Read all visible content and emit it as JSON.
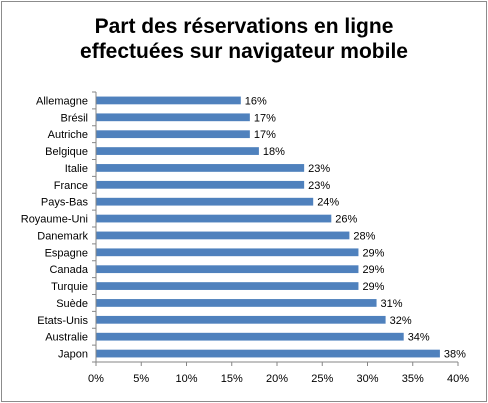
{
  "chart_data": {
    "type": "bar",
    "orientation": "horizontal",
    "title_lines": [
      "Part des réservations en ligne",
      "effectuées sur navigateur mobile"
    ],
    "categories": [
      "Allemagne",
      "Brésil",
      "Autriche",
      "Belgique",
      "Italie",
      "France",
      "Pays-Bas",
      "Royaume-Uni",
      "Danemark",
      "Espagne",
      "Canada",
      "Turquie",
      "Suède",
      "Etats-Unis",
      "Australie",
      "Japon"
    ],
    "values": [
      16,
      17,
      17,
      18,
      23,
      23,
      24,
      26,
      28,
      29,
      29,
      29,
      31,
      32,
      34,
      38
    ],
    "value_labels": [
      "16%",
      "17%",
      "17%",
      "18%",
      "23%",
      "23%",
      "24%",
      "26%",
      "28%",
      "29%",
      "29%",
      "29%",
      "31%",
      "32%",
      "34%",
      "38%"
    ],
    "x_ticks": [
      0,
      5,
      10,
      15,
      20,
      25,
      30,
      35,
      40
    ],
    "x_tick_labels": [
      "0%",
      "5%",
      "10%",
      "15%",
      "20%",
      "25%",
      "30%",
      "35%",
      "40%"
    ],
    "xlim": [
      0,
      40
    ],
    "bar_color": "#4f81bd",
    "grid": false,
    "legend": false
  }
}
